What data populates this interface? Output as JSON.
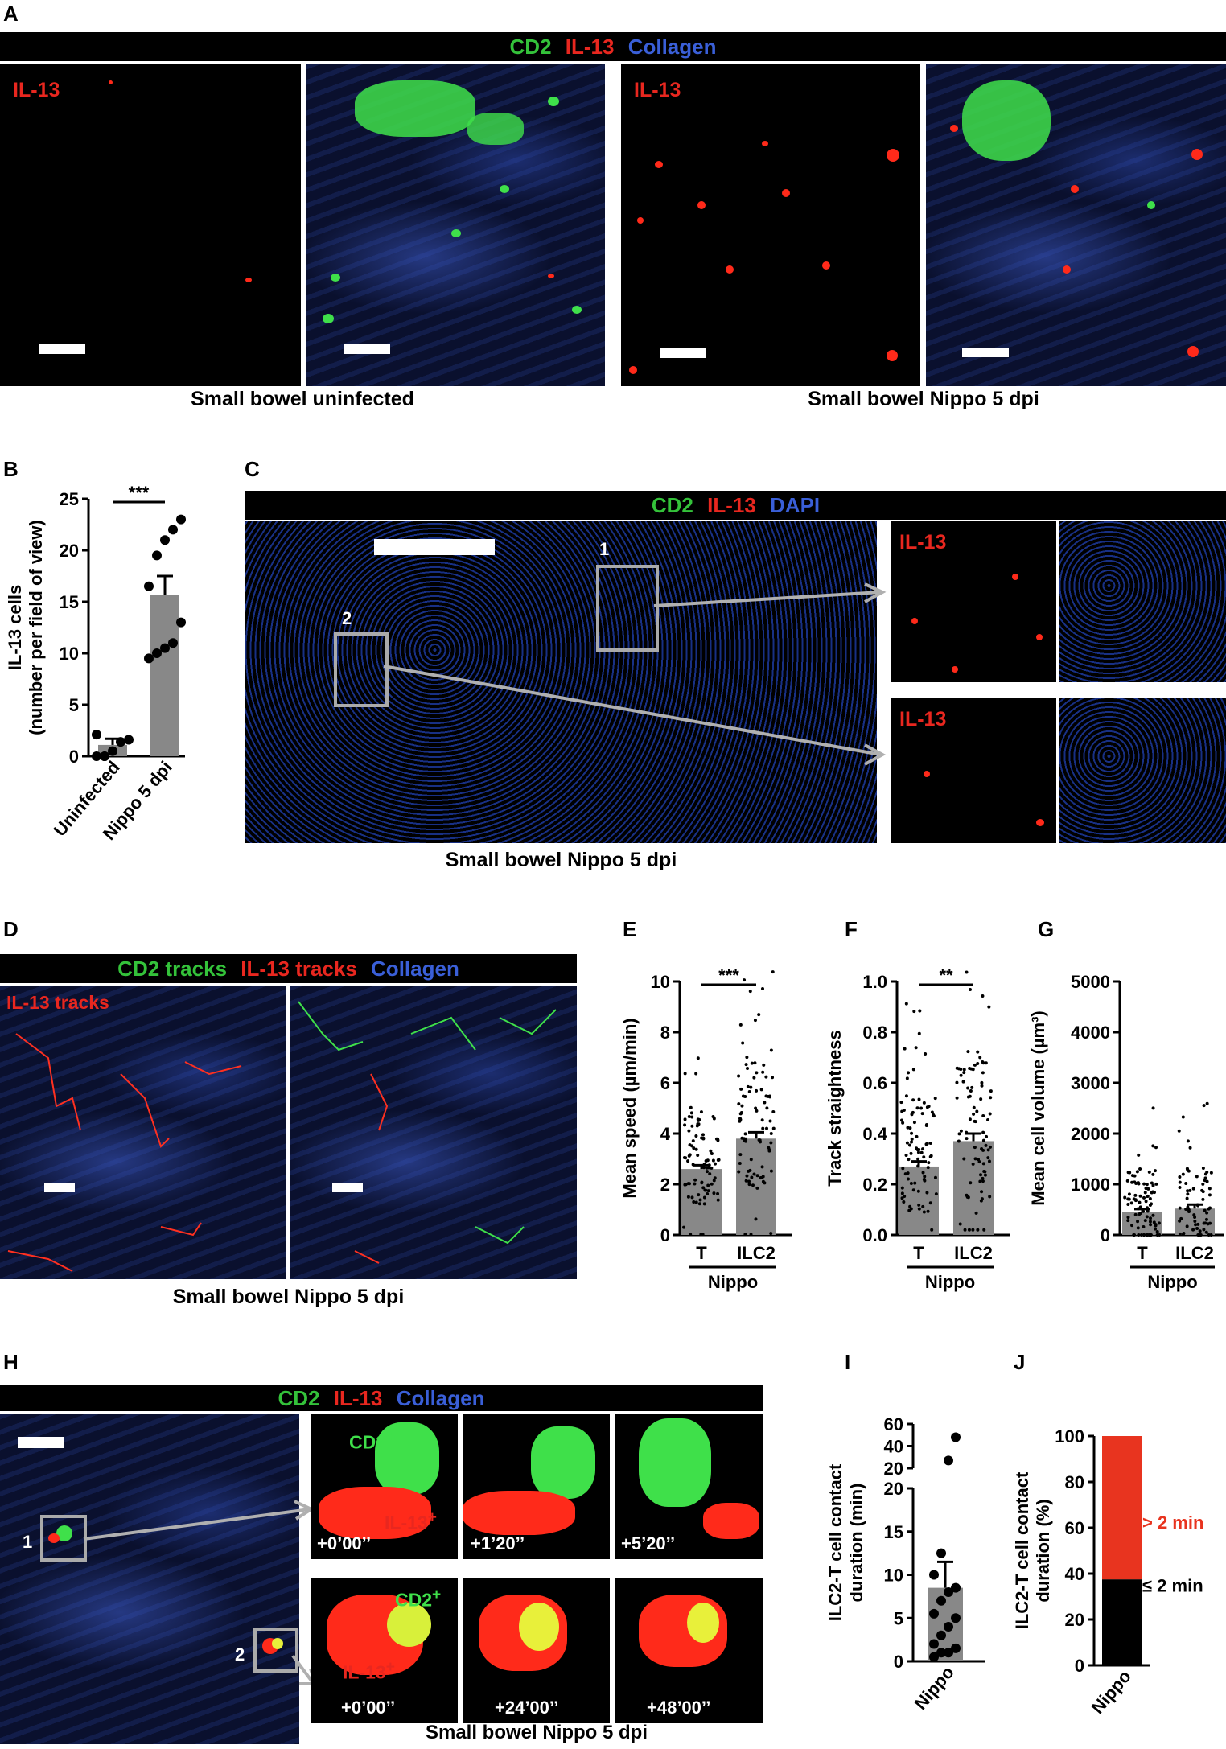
{
  "panels": {
    "A": {
      "letter": "A",
      "legend": [
        {
          "text": "CD2",
          "color": "#34c23a"
        },
        {
          "text": "IL-13",
          "color": "#e8271f"
        },
        {
          "text": "Collagen",
          "color": "#3a5fd8"
        }
      ],
      "il13_label": "IL-13",
      "caption_left": "Small bowel uninfected",
      "caption_right": "Small bowel Nippo 5 dpi"
    },
    "B": {
      "letter": "B"
    },
    "C": {
      "letter": "C",
      "legend": [
        {
          "text": "CD2",
          "color": "#34c23a"
        },
        {
          "text": "IL-13",
          "color": "#e8271f"
        },
        {
          "text": "DAPI",
          "color": "#3a5fd8"
        }
      ],
      "box1": "1",
      "box2": "2",
      "il13_label": "IL-13",
      "caption": "Small bowel Nippo 5 dpi"
    },
    "D": {
      "letter": "D",
      "legend": [
        {
          "text": "CD2 tracks",
          "color": "#34c23a"
        },
        {
          "text": "IL-13 tracks",
          "color": "#e8271f"
        },
        {
          "text": "Collagen",
          "color": "#3a5fd8"
        }
      ],
      "il13_label": "IL-13 tracks",
      "caption": "Small bowel Nippo 5 dpi"
    },
    "E": {
      "letter": "E"
    },
    "F": {
      "letter": "F"
    },
    "G": {
      "letter": "G"
    },
    "H": {
      "letter": "H",
      "legend": [
        {
          "text": "CD2",
          "color": "#34c23a"
        },
        {
          "text": "IL-13",
          "color": "#e8271f"
        },
        {
          "text": "Collagen",
          "color": "#3a5fd8"
        }
      ],
      "box1": "1",
      "box2": "2",
      "cd2_label": "CD2",
      "il13_label": "IL-13",
      "sup": "+",
      "times_row1": [
        "+0’00’’",
        "+1’20’’",
        "+5’20’’"
      ],
      "times_row2": [
        "+0’00’’",
        "+24’00’’",
        "+48’00’’"
      ],
      "caption": "Small bowel Nippo 5 dpi"
    },
    "I": {
      "letter": "I"
    },
    "J": {
      "letter": "J"
    }
  },
  "chart_data": [
    {
      "id": "B",
      "type": "bar",
      "categories": [
        "Uninfected",
        "Nippo 5 dpi"
      ],
      "values": [
        1.1,
        15.7
      ],
      "errors": [
        0.6,
        1.8
      ],
      "points": [
        [
          0,
          0,
          0.5,
          1.4,
          1.6,
          2.1,
          0
        ],
        [
          9.5,
          10,
          10.5,
          11,
          13,
          16.5,
          19.5,
          21,
          22,
          23
        ]
      ],
      "ylabel": "IL-13 cells\n(number per field of view)",
      "ylim": [
        0,
        25
      ],
      "yticks": [
        0,
        5,
        10,
        15,
        20,
        25
      ],
      "significance": "***"
    },
    {
      "id": "E",
      "type": "bar",
      "categories": [
        "T",
        "ILC2"
      ],
      "group": "Nippo",
      "values": [
        2.6,
        3.8
      ],
      "errors": [
        0.15,
        0.25
      ],
      "ylabel": "Mean speed (µm/min)",
      "ylim": [
        0,
        10
      ],
      "yticks": [
        0,
        2,
        4,
        6,
        8,
        10
      ],
      "significance": "***"
    },
    {
      "id": "F",
      "type": "bar",
      "categories": [
        "T",
        "ILC2"
      ],
      "group": "Nippo",
      "values": [
        0.27,
        0.37
      ],
      "errors": [
        0.02,
        0.03
      ],
      "ylabel": "Track straightness",
      "ylim": [
        0,
        1.0
      ],
      "yticks": [
        "0.0",
        "0.2",
        "0.4",
        "0.6",
        "0.8",
        "1.0"
      ],
      "significance": "**"
    },
    {
      "id": "G",
      "type": "bar",
      "categories": [
        "T",
        "ILC2"
      ],
      "group": "Nippo",
      "values": [
        450,
        520
      ],
      "errors": [
        60,
        80
      ],
      "ylabel": "Mean cell volume (µm³)",
      "ylim": [
        0,
        5000
      ],
      "yticks": [
        0,
        1000,
        2000,
        3000,
        4000,
        5000
      ]
    },
    {
      "id": "I",
      "type": "bar",
      "categories": [
        "Nippo"
      ],
      "values": [
        8.5
      ],
      "errors": [
        3.0
      ],
      "points": [
        0.5,
        1,
        1,
        1.5,
        2,
        3,
        4,
        5,
        5.5,
        7,
        8,
        8.5,
        10,
        12.5,
        27,
        48
      ],
      "ylabel": "ILC2-T cell contact\nduration (min)",
      "ylim": [
        0,
        60
      ],
      "yticks_lower": [
        0,
        5,
        10,
        15,
        20
      ],
      "yticks_upper": [
        20,
        40,
        60
      ]
    },
    {
      "id": "J",
      "type": "bar",
      "categories": [
        "Nippo"
      ],
      "stack": [
        {
          "name": "≤ 2 min",
          "value": 37.5,
          "color": "#000000"
        },
        {
          "name": "> 2 min",
          "value": 62.5,
          "color": "#e8341f"
        }
      ],
      "ylabel": "ILC2-T cell contact\nduration (%)",
      "ylim": [
        0,
        100
      ],
      "yticks": [
        0,
        20,
        40,
        60,
        80,
        100
      ]
    }
  ]
}
